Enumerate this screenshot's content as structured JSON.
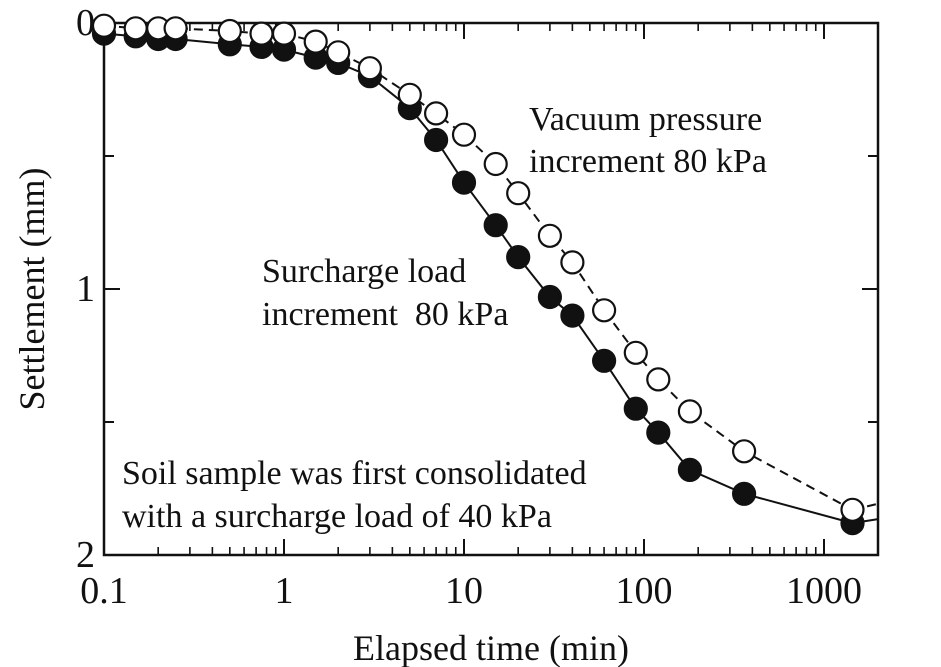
{
  "chart_data": {
    "type": "scatter",
    "xlabel": "Elapsed time (min)",
    "ylabel": "Settlement (mm)",
    "x_scale": "log",
    "xlim": [
      0.1,
      2000
    ],
    "ylim": [
      2,
      0
    ],
    "y_inverted": true,
    "x_ticks": [
      "0.1",
      "1",
      "10",
      "100",
      "1000"
    ],
    "y_ticks": [
      "0",
      "1",
      "2"
    ],
    "grid": false,
    "series": [
      {
        "label_lines": [
          "Vacuum pressure",
          "increment 80 kPa"
        ],
        "marker": "open-circle",
        "line": "dashed",
        "color": "#111111",
        "x": [
          0.1,
          0.15,
          0.2,
          0.25,
          0.5,
          0.75,
          1.0,
          1.5,
          2.0,
          3.0,
          5.0,
          7.0,
          10.0,
          15.0,
          20.0,
          30.0,
          40.0,
          60.0,
          90.0,
          120.0,
          180.0,
          360.0,
          1440.0
        ],
        "y": [
          0.01,
          0.02,
          0.02,
          0.02,
          0.03,
          0.04,
          0.04,
          0.07,
          0.11,
          0.17,
          0.27,
          0.34,
          0.42,
          0.53,
          0.64,
          0.8,
          0.9,
          1.08,
          1.24,
          1.34,
          1.46,
          1.61,
          1.83
        ]
      },
      {
        "label_lines": [
          "Surcharge load",
          "increment  80 kPa"
        ],
        "marker": "filled-circle",
        "line": "solid",
        "color": "#111111",
        "x": [
          0.1,
          0.15,
          0.2,
          0.25,
          0.5,
          0.75,
          1.0,
          1.5,
          2.0,
          3.0,
          5.0,
          7.0,
          10.0,
          15.0,
          20.0,
          30.0,
          40.0,
          60.0,
          90.0,
          120.0,
          180.0,
          360.0,
          1440.0
        ],
        "y": [
          0.04,
          0.05,
          0.06,
          0.06,
          0.08,
          0.09,
          0.1,
          0.13,
          0.15,
          0.2,
          0.32,
          0.44,
          0.6,
          0.76,
          0.88,
          1.03,
          1.1,
          1.27,
          1.45,
          1.54,
          1.68,
          1.77,
          1.88
        ]
      }
    ],
    "note_lines": [
      "Soil sample was first consolidated",
      "with a surcharge load of 40 kPa"
    ]
  }
}
